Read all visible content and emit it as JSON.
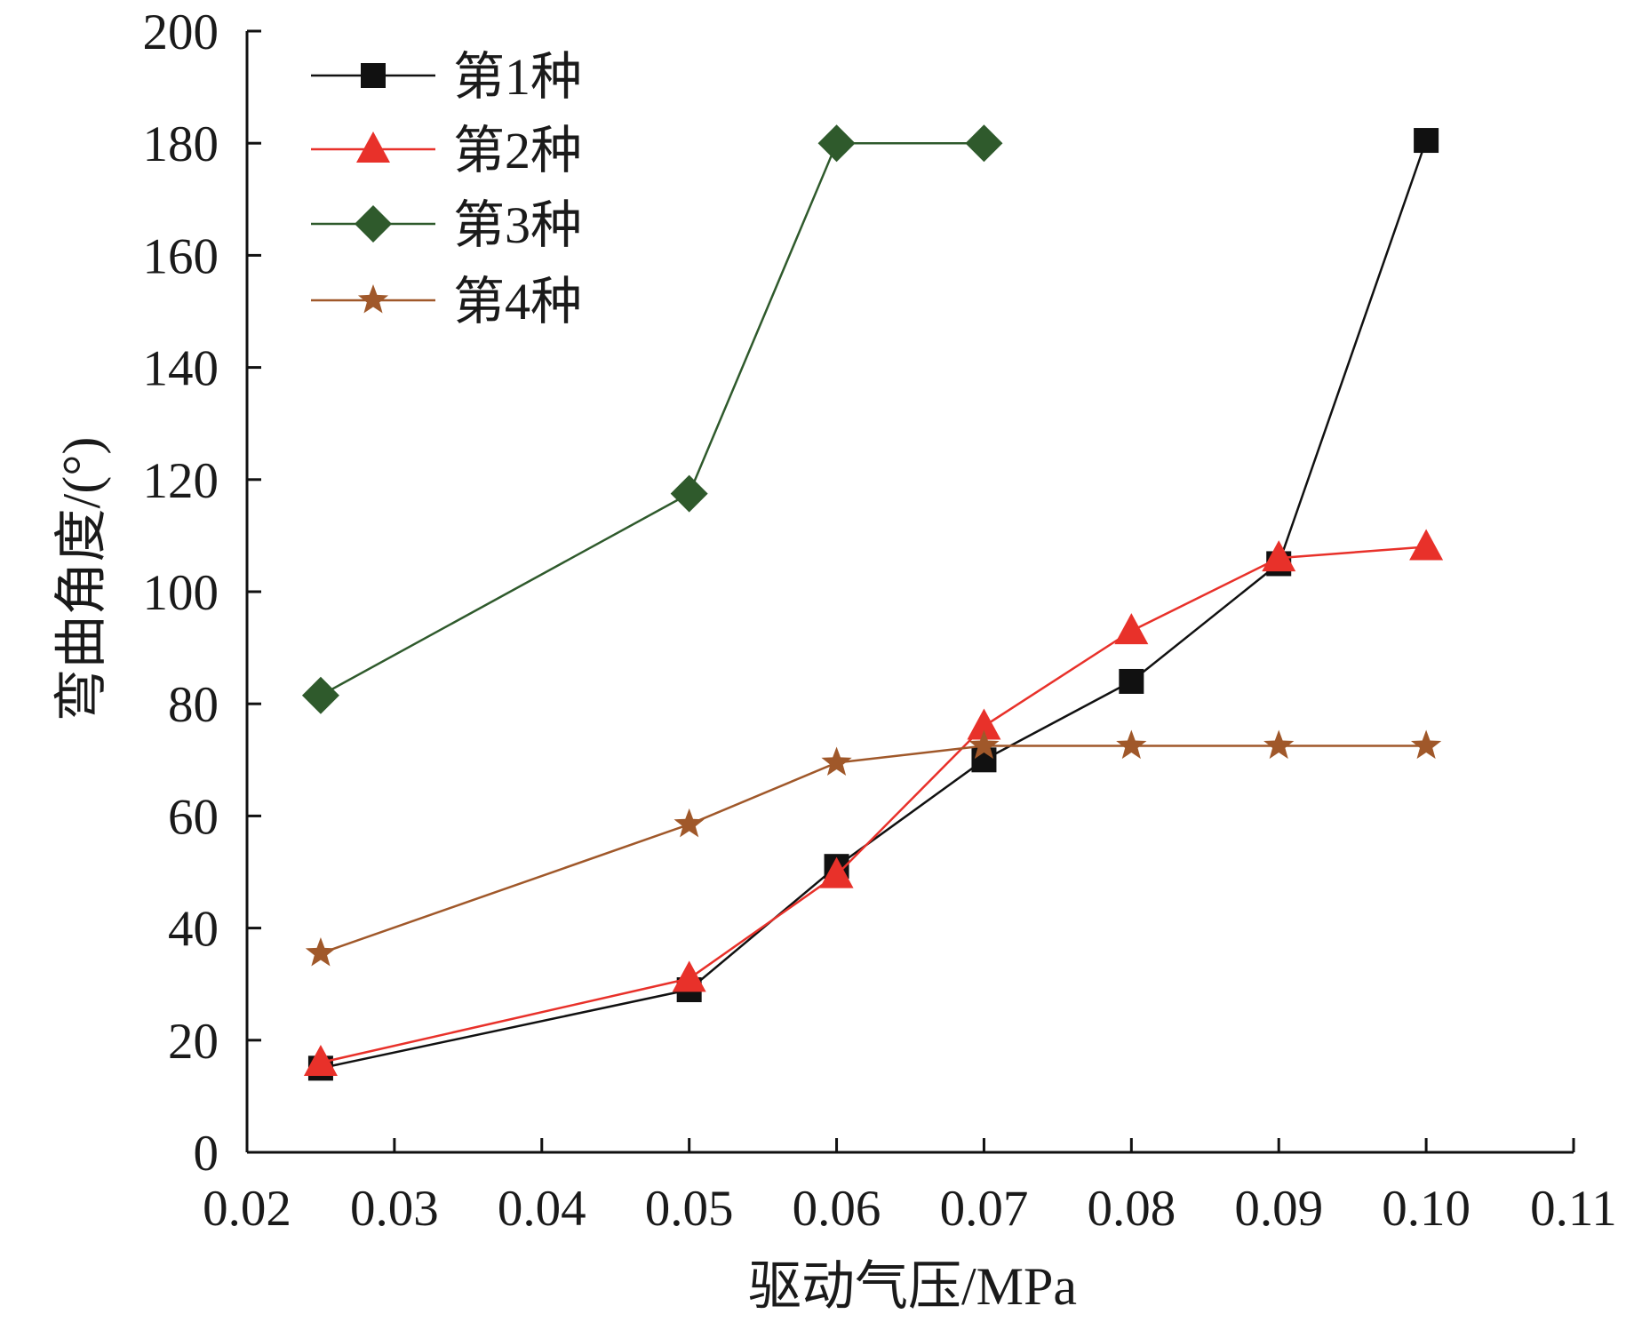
{
  "chart_data": {
    "type": "line",
    "title": "",
    "xlabel": "驱动气压/MPa",
    "ylabel": "弯曲角度/(°)",
    "xlim": [
      0.02,
      0.11
    ],
    "ylim": [
      0,
      200
    ],
    "xticks": [
      0.02,
      0.03,
      0.04,
      0.05,
      0.06,
      0.07,
      0.08,
      0.09,
      0.1,
      0.11
    ],
    "xtick_labels": [
      "0.02",
      "0.03",
      "0.04",
      "0.05",
      "0.06",
      "0.07",
      "0.08",
      "0.09",
      "0.10",
      "0.11"
    ],
    "yticks": [
      0,
      20,
      40,
      60,
      80,
      100,
      120,
      140,
      160,
      180,
      200
    ],
    "ytick_labels": [
      "0",
      "20",
      "40",
      "60",
      "80",
      "100",
      "120",
      "140",
      "160",
      "180",
      "200"
    ],
    "grid": false,
    "legend_position": "top-left",
    "series": [
      {
        "name": "第1种",
        "color": "#111111",
        "marker": "square",
        "x": [
          0.025,
          0.05,
          0.06,
          0.07,
          0.08,
          0.09,
          0.1
        ],
        "y": [
          15,
          29,
          51,
          70,
          84,
          105,
          180.5
        ]
      },
      {
        "name": "第2种",
        "color": "#e8312a",
        "marker": "triangle",
        "x": [
          0.025,
          0.05,
          0.06,
          0.07,
          0.08,
          0.09,
          0.1
        ],
        "y": [
          16,
          31,
          49.5,
          76,
          93,
          106,
          108
        ]
      },
      {
        "name": "第3种",
        "color": "#2f5a2c",
        "marker": "diamond",
        "x": [
          0.025,
          0.05,
          0.06,
          0.07
        ],
        "y": [
          81.5,
          117.5,
          180,
          180
        ]
      },
      {
        "name": "第4种",
        "color": "#a0582a",
        "marker": "star",
        "x": [
          0.025,
          0.05,
          0.06,
          0.07,
          0.08,
          0.09,
          0.1
        ],
        "y": [
          35.5,
          58.5,
          69.5,
          72.5,
          72.5,
          72.5,
          72.5
        ]
      }
    ]
  }
}
